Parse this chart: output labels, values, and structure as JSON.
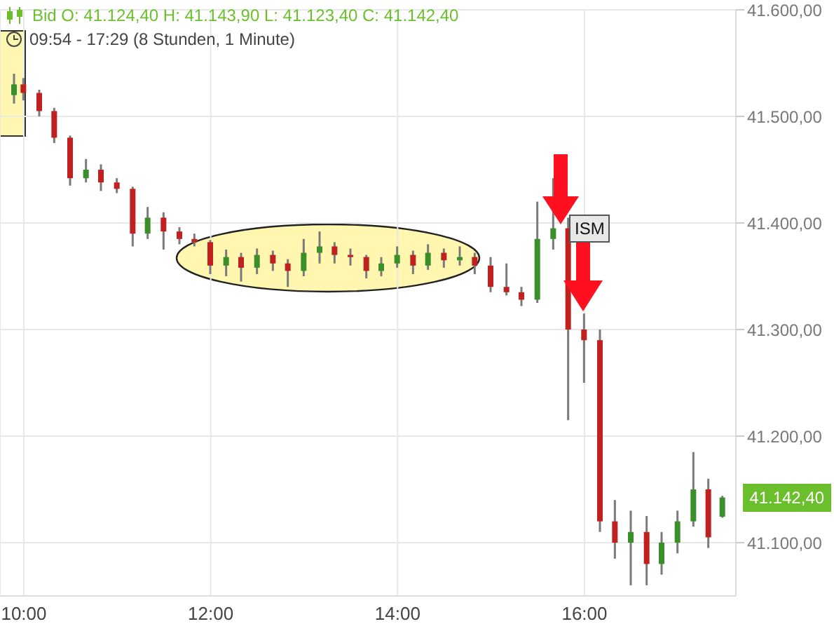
{
  "chart_data": {
    "type": "candlestick",
    "title": "Bid  O: 41.124,40  H: 41.143,90  L: 41.123,40  C: 41.142,40",
    "subtitle": "09:54 - 17:29  (8 Stunden, 1 Minute)",
    "x": [
      9.9,
      10,
      10.17,
      10.33,
      10.5,
      10.67,
      10.83,
      11,
      11.17,
      11.33,
      11.5,
      11.67,
      11.83,
      12,
      12.17,
      12.33,
      12.5,
      12.67,
      12.83,
      13,
      13.17,
      13.33,
      13.5,
      13.67,
      13.83,
      14,
      14.17,
      14.33,
      14.5,
      14.67,
      14.83,
      15,
      15.17,
      15.33,
      15.5,
      15.67,
      15.83,
      16,
      16.17,
      16.33,
      16.5,
      16.67,
      16.83,
      17,
      17.17,
      17.33,
      17.48
    ],
    "ohlc": [
      [
        41520,
        41540,
        41512,
        41530
      ],
      [
        41530,
        41536,
        41515,
        41522
      ],
      [
        41522,
        41525,
        41500,
        41505
      ],
      [
        41505,
        41508,
        41475,
        41480
      ],
      [
        41480,
        41482,
        41435,
        41442
      ],
      [
        41442,
        41460,
        41438,
        41450
      ],
      [
        41450,
        41455,
        41430,
        41438
      ],
      [
        41438,
        41442,
        41428,
        41432
      ],
      [
        41432,
        41434,
        41378,
        41390
      ],
      [
        41390,
        41415,
        41385,
        41405
      ],
      [
        41405,
        41410,
        41375,
        41392
      ],
      [
        41392,
        41396,
        41380,
        41385
      ],
      [
        41385,
        41390,
        41378,
        41382
      ],
      [
        41382,
        41384,
        41352,
        41360
      ],
      [
        41360,
        41375,
        41350,
        41368
      ],
      [
        41368,
        41372,
        41345,
        41358
      ],
      [
        41358,
        41376,
        41352,
        41370
      ],
      [
        41370,
        41374,
        41355,
        41362
      ],
      [
        41362,
        41366,
        41340,
        41355
      ],
      [
        41355,
        41385,
        41350,
        41372
      ],
      [
        41372,
        41392,
        41362,
        41378
      ],
      [
        41378,
        41382,
        41362,
        41370
      ],
      [
        41370,
        41376,
        41360,
        41368
      ],
      [
        41368,
        41370,
        41348,
        41355
      ],
      [
        41355,
        41368,
        41350,
        41362
      ],
      [
        41362,
        41378,
        41358,
        41370
      ],
      [
        41370,
        41374,
        41352,
        41360
      ],
      [
        41360,
        41380,
        41356,
        41372
      ],
      [
        41372,
        41376,
        41358,
        41365
      ],
      [
        41365,
        41378,
        41360,
        41368
      ],
      [
        41368,
        41372,
        41352,
        41360
      ],
      [
        41360,
        41368,
        41335,
        41340
      ],
      [
        41340,
        41362,
        41332,
        41335
      ],
      [
        41335,
        41340,
        41322,
        41328
      ],
      [
        41328,
        41420,
        41325,
        41385
      ],
      [
        41385,
        41442,
        41375,
        41395
      ],
      [
        41395,
        41405,
        41215,
        41300
      ],
      [
        41300,
        41315,
        41250,
        41290
      ],
      [
        41290,
        41300,
        41110,
        41120
      ],
      [
        41120,
        41140,
        41085,
        41100
      ],
      [
        41100,
        41130,
        41060,
        41110
      ],
      [
        41110,
        41125,
        41060,
        41080
      ],
      [
        41080,
        41110,
        41070,
        41100
      ],
      [
        41100,
        41130,
        41090,
        41120
      ],
      [
        41120,
        41185,
        41115,
        41150
      ],
      [
        41150,
        41160,
        41095,
        41105
      ],
      [
        41124.4,
        41143.9,
        41123.4,
        41142.4
      ]
    ],
    "colors": [
      "#3a8f2a",
      "#c0201e",
      "#c0201e",
      "#c0201e",
      "#c0201e",
      "#3a8f2a",
      "#c0201e",
      "#c0201e",
      "#c0201e",
      "#3a8f2a",
      "#c0201e",
      "#c0201e",
      "#c0201e",
      "#c0201e",
      "#3a8f2a",
      "#c0201e",
      "#3a8f2a",
      "#c0201e",
      "#c0201e",
      "#3a8f2a",
      "#3a8f2a",
      "#c0201e",
      "#c0201e",
      "#c0201e",
      "#3a8f2a",
      "#3a8f2a",
      "#c0201e",
      "#3a8f2a",
      "#c0201e",
      "#3a8f2a",
      "#c0201e",
      "#c0201e",
      "#c0201e",
      "#c0201e",
      "#3a8f2a",
      "#3a8f2a",
      "#c0201e",
      "#c0201e",
      "#c0201e",
      "#c0201e",
      "#3a8f2a",
      "#c0201e",
      "#3a8f2a",
      "#3a8f2a",
      "#3a8f2a",
      "#c0201e",
      "#3a8f2a"
    ],
    "xlim": [
      9.745,
      17.62
    ],
    "ylim": [
      41050,
      41600
    ],
    "xticks": [
      {
        "value": 10,
        "label": "10:00"
      },
      {
        "value": 12,
        "label": "12:00"
      },
      {
        "value": 14,
        "label": "14:00"
      },
      {
        "value": 16,
        "label": "16:00"
      }
    ],
    "yticks": [
      {
        "value": 41100,
        "label": "41.100,00"
      },
      {
        "value": 41200,
        "label": "41.200,00"
      },
      {
        "value": 41300,
        "label": "41.300,00"
      },
      {
        "value": 41400,
        "label": "41.400,00"
      },
      {
        "value": 41500,
        "label": "41.500,00"
      },
      {
        "value": 41600,
        "label": "41.600,00"
      }
    ],
    "grid": true,
    "annotations": [
      "ISM",
      {
        "text": "41.142,40",
        "x": 17.48,
        "y": 41142.4
      }
    ]
  }
}
